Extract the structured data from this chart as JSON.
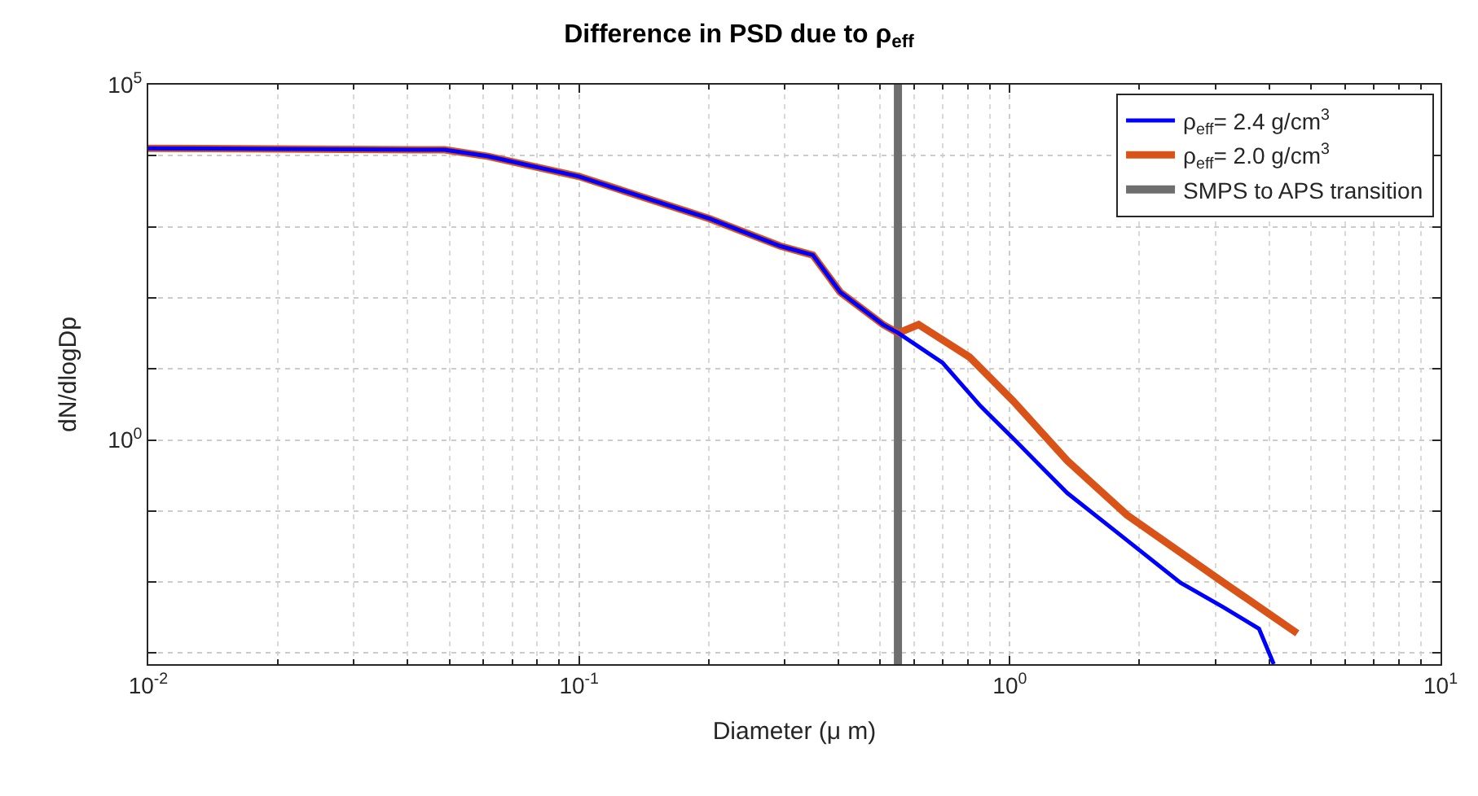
{
  "chart_data": {
    "type": "line",
    "title": "Difference in PSD due to ρ$_{eff}$",
    "xlabel": "Diameter (μ m)",
    "ylabel": "dN/dlogDp",
    "log": "xy",
    "grid": true,
    "legend": "top right",
    "line_style": "solid",
    "marker": "none",
    "xlim": [
      0.01,
      10
    ],
    "xticks": [
      {
        "value": 0.01,
        "label": "10$^{-2}$"
      },
      {
        "value": 0.1,
        "label": "10$^{-1}$"
      },
      {
        "value": 1,
        "label": "10$^{0}$"
      },
      {
        "value": 10,
        "label": "10$^{1}$"
      }
    ],
    "ylim": [
      0.0007,
      100000
    ],
    "yticks": [
      {
        "value": 0.001,
        "label": null
      },
      {
        "value": 0.01,
        "label": null
      },
      {
        "value": 0.1,
        "label": null
      },
      {
        "value": 1,
        "label": "10$^{0}$"
      },
      {
        "value": 10,
        "label": null
      },
      {
        "value": 100,
        "label": null
      },
      {
        "value": 1000,
        "label": null
      },
      {
        "value": 10000,
        "label": null
      },
      {
        "value": 100000,
        "label": "10$^{5}$"
      }
    ],
    "series": [
      {
        "name": "ρ$_{eff}$= 2.4 g/cm$^{3}$",
        "color": "#0000ff",
        "x": [
          0.01,
          0.0488,
          0.0615,
          0.1,
          0.201,
          0.293,
          0.349,
          0.404,
          0.508,
          0.551,
          0.698,
          0.855,
          1.02,
          1.36,
          1.76,
          2.49,
          3.14,
          3.79,
          4.1
        ],
        "values": [
          12700,
          12100,
          9800,
          5100,
          1300,
          536,
          400,
          120,
          42,
          32,
          12.2,
          3.0,
          1.04,
          0.179,
          0.052,
          0.0098,
          0.0044,
          0.0022,
          0.0007
        ]
      },
      {
        "name": "ρ$_{eff}$= 2.0 g/cm$^{3}$",
        "color": "#d95319",
        "x": [
          0.01,
          0.0488,
          0.0615,
          0.1,
          0.201,
          0.293,
          0.349,
          0.404,
          0.508,
          0.551,
          0.614,
          0.807,
          1.02,
          1.36,
          1.87,
          3.14,
          4.65
        ],
        "values": [
          12700,
          12100,
          9800,
          5100,
          1300,
          536,
          400,
          120,
          42,
          32,
          42,
          14.6,
          3.5,
          0.51,
          0.088,
          0.0098,
          0.0019
        ]
      },
      {
        "name": "SMPS to APS transition",
        "color": "#6e6e6e",
        "x": [
          0.55,
          0.55
        ],
        "values": [
          0.0007,
          100000
        ]
      }
    ]
  }
}
